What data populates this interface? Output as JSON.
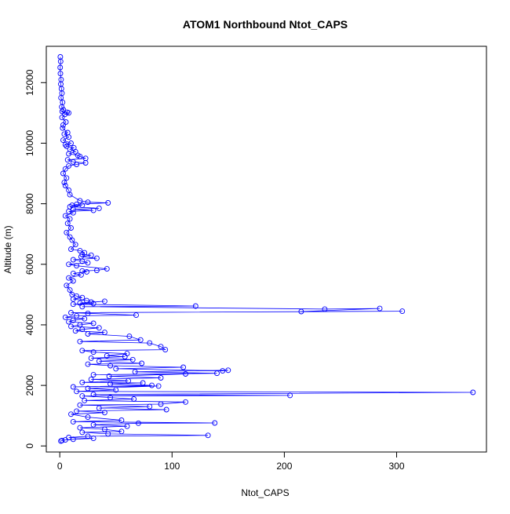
{
  "chart_data": {
    "type": "line",
    "title": "ATOM1 Northbound Ntot_CAPS",
    "xlabel": "Ntot_CAPS",
    "ylabel": "Altitude (m)",
    "xlim": [
      -12,
      380
    ],
    "ylim": [
      -200,
      13200
    ],
    "x_ticks": [
      0,
      100,
      200,
      300
    ],
    "y_ticks": [
      0,
      2000,
      4000,
      6000,
      8000,
      10000,
      12000
    ],
    "x_tick_labels": [
      "0",
      "100",
      "200",
      "300"
    ],
    "y_tick_labels": [
      "0",
      "2000",
      "4000",
      "6000",
      "8000",
      "10000",
      "12000"
    ],
    "grid": false,
    "legend": "none",
    "series": [
      {
        "color": "#0000ff",
        "marker": "open-circle",
        "points": [
          [
            0.5,
            12850
          ],
          [
            0.8,
            12700
          ],
          [
            0.4,
            12500
          ],
          [
            0.6,
            12300
          ],
          [
            1.2,
            12100
          ],
          [
            0.9,
            11950
          ],
          [
            1.5,
            11800
          ],
          [
            2.0,
            11650
          ],
          [
            1.1,
            11500
          ],
          [
            2.5,
            11350
          ],
          [
            1.8,
            11200
          ],
          [
            3.2,
            11100
          ],
          [
            2.2,
            11050
          ],
          [
            6.5,
            11020
          ],
          [
            8.0,
            11000
          ],
          [
            4.5,
            10950
          ],
          [
            2.0,
            10850
          ],
          [
            5.5,
            10700
          ],
          [
            3.0,
            10600
          ],
          [
            2.5,
            10500
          ],
          [
            7.0,
            10350
          ],
          [
            4.0,
            10300
          ],
          [
            8.0,
            10200
          ],
          [
            3.0,
            10100
          ],
          [
            10.0,
            10000
          ],
          [
            5.0,
            9950
          ],
          [
            6.0,
            9900
          ],
          [
            12.5,
            9850
          ],
          [
            9.0,
            9800
          ],
          [
            14.0,
            9720
          ],
          [
            8.0,
            9650
          ],
          [
            16.0,
            9600
          ],
          [
            18.0,
            9560
          ],
          [
            23.0,
            9500
          ],
          [
            7.0,
            9450
          ],
          [
            12.0,
            9380
          ],
          [
            23.0,
            9350
          ],
          [
            15.0,
            9300
          ],
          [
            8.0,
            9250
          ],
          [
            5.0,
            9150
          ],
          [
            3.0,
            9000
          ],
          [
            6.0,
            8850
          ],
          [
            4.0,
            8700
          ],
          [
            5.0,
            8600
          ],
          [
            8.0,
            8450
          ],
          [
            9.0,
            8300
          ],
          [
            18.0,
            8100
          ],
          [
            25.0,
            8050
          ],
          [
            43.0,
            8030
          ],
          [
            15.0,
            7980
          ],
          [
            11.0,
            7950
          ],
          [
            20.0,
            7950
          ],
          [
            9.0,
            7900
          ],
          [
            35.0,
            7850
          ],
          [
            12.0,
            7820
          ],
          [
            30.0,
            7780
          ],
          [
            8.0,
            7750
          ],
          [
            12.0,
            7700
          ],
          [
            5.0,
            7600
          ],
          [
            9.0,
            7500
          ],
          [
            7.0,
            7350
          ],
          [
            10.0,
            7200
          ],
          [
            6.0,
            7050
          ],
          [
            9.0,
            6900
          ],
          [
            11.0,
            6800
          ],
          [
            14.0,
            6650
          ],
          [
            10.0,
            6500
          ],
          [
            18.0,
            6450
          ],
          [
            22.0,
            6380
          ],
          [
            20.0,
            6320
          ],
          [
            28.0,
            6300
          ],
          [
            19.0,
            6250
          ],
          [
            33.0,
            6200
          ],
          [
            12.0,
            6150
          ],
          [
            20.0,
            6100
          ],
          [
            25.0,
            6050
          ],
          [
            8.0,
            6000
          ],
          [
            15.0,
            5950
          ],
          [
            42.0,
            5850
          ],
          [
            33.0,
            5800
          ],
          [
            20.0,
            5780
          ],
          [
            24.0,
            5750
          ],
          [
            12.0,
            5700
          ],
          [
            19.0,
            5650
          ],
          [
            8.0,
            5550
          ],
          [
            12.0,
            5450
          ],
          [
            6.0,
            5300
          ],
          [
            9.0,
            5150
          ],
          [
            11.0,
            5000
          ],
          [
            15.0,
            4950
          ],
          [
            20.0,
            4900
          ],
          [
            12.0,
            4850
          ],
          [
            24.0,
            4800
          ],
          [
            28.0,
            4750
          ],
          [
            40.0,
            4780
          ],
          [
            18.0,
            4720
          ],
          [
            30.0,
            4700
          ],
          [
            12.0,
            4680
          ],
          [
            121.0,
            4620
          ],
          [
            20.0,
            4600
          ],
          [
            236.0,
            4520
          ],
          [
            285.0,
            4540
          ],
          [
            215.0,
            4440
          ],
          [
            305.0,
            4450
          ],
          [
            10.0,
            4400
          ],
          [
            25.0,
            4380
          ],
          [
            68.0,
            4320
          ],
          [
            15.0,
            4300
          ],
          [
            5.0,
            4250
          ],
          [
            22.0,
            4200
          ],
          [
            12.0,
            4150
          ],
          [
            8.0,
            4100
          ],
          [
            30.0,
            4050
          ],
          [
            18.0,
            4000
          ],
          [
            10.0,
            3950
          ],
          [
            35.0,
            3900
          ],
          [
            20.0,
            3850
          ],
          [
            14.0,
            3800
          ],
          [
            40.0,
            3750
          ],
          [
            25.0,
            3700
          ],
          [
            62.0,
            3620
          ],
          [
            72.0,
            3500
          ],
          [
            18.0,
            3450
          ],
          [
            80.0,
            3400
          ],
          [
            90.0,
            3280
          ],
          [
            94.0,
            3180
          ],
          [
            20.0,
            3150
          ],
          [
            30.0,
            3100
          ],
          [
            60.0,
            3050
          ],
          [
            42.0,
            2980
          ],
          [
            58.0,
            2950
          ],
          [
            28.0,
            2900
          ],
          [
            65.0,
            2850
          ],
          [
            35.0,
            2800
          ],
          [
            73.0,
            2730
          ],
          [
            25.0,
            2700
          ],
          [
            45.0,
            2650
          ],
          [
            110.0,
            2600
          ],
          [
            50.0,
            2550
          ],
          [
            145.0,
            2480
          ],
          [
            150.0,
            2500
          ],
          [
            67.0,
            2450
          ],
          [
            140.0,
            2400
          ],
          [
            30.0,
            2350
          ],
          [
            112.0,
            2380
          ],
          [
            44.0,
            2300
          ],
          [
            90.0,
            2250
          ],
          [
            28.0,
            2200
          ],
          [
            61.0,
            2150
          ],
          [
            20.0,
            2100
          ],
          [
            74.0,
            2080
          ],
          [
            45.0,
            2050
          ],
          [
            82.0,
            2000
          ],
          [
            12.0,
            1950
          ],
          [
            88.0,
            1980
          ],
          [
            25.0,
            1900
          ],
          [
            50.0,
            1850
          ],
          [
            15.0,
            1800
          ],
          [
            368.0,
            1770
          ],
          [
            30.0,
            1700
          ],
          [
            205.0,
            1670
          ],
          [
            20.0,
            1650
          ],
          [
            45.0,
            1600
          ],
          [
            66.0,
            1550
          ],
          [
            22.0,
            1500
          ],
          [
            112.0,
            1450
          ],
          [
            90.0,
            1380
          ],
          [
            18.0,
            1350
          ],
          [
            80.0,
            1300
          ],
          [
            35.0,
            1250
          ],
          [
            95.0,
            1200
          ],
          [
            15.0,
            1150
          ],
          [
            40.0,
            1100
          ],
          [
            10.0,
            1050
          ],
          [
            25.0,
            950
          ],
          [
            55.0,
            850
          ],
          [
            12.0,
            800
          ],
          [
            138.0,
            760
          ],
          [
            70.0,
            750
          ],
          [
            30.0,
            700
          ],
          [
            60.0,
            650
          ],
          [
            18.0,
            600
          ],
          [
            40.0,
            550
          ],
          [
            55.0,
            480
          ],
          [
            20.0,
            450
          ],
          [
            43.0,
            400
          ],
          [
            132.0,
            350
          ],
          [
            25.0,
            320
          ],
          [
            8.0,
            280
          ],
          [
            30.0,
            250
          ],
          [
            12.0,
            220
          ],
          [
            5.0,
            200
          ],
          [
            2.0,
            180
          ],
          [
            1.0,
            160
          ]
        ]
      }
    ]
  }
}
